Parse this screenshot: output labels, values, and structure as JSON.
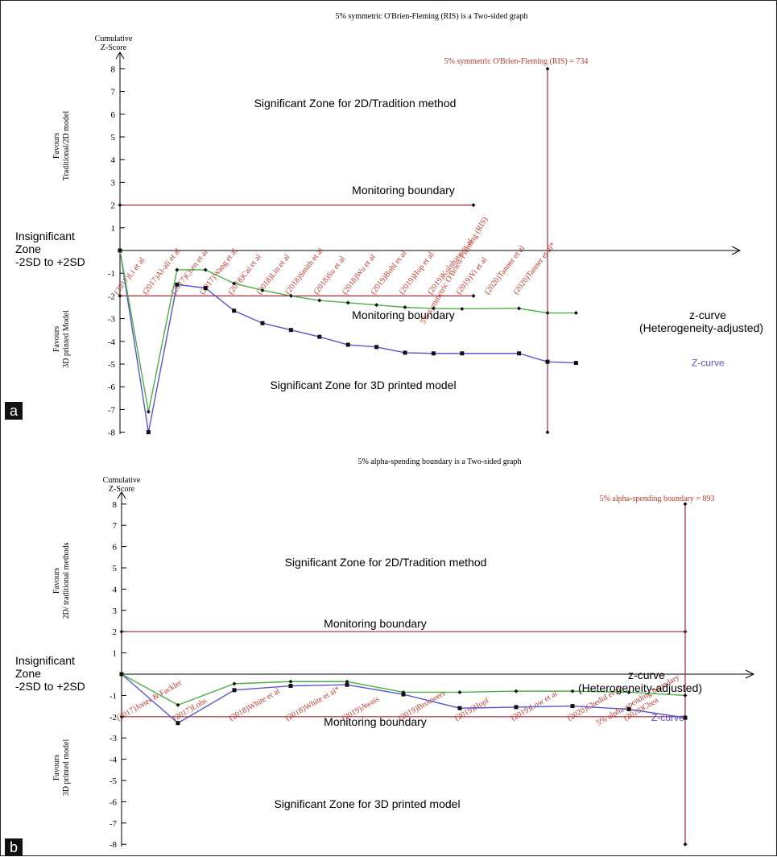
{
  "chart_data": [
    {
      "type": "line",
      "panel": "a",
      "title": "5% symmetric O'Brien-Fleming (RIS) is a Two-sided graph",
      "ylabel": "Cumulative Z-Score",
      "ylim": [
        -8,
        8
      ],
      "yticks": [
        8,
        7,
        6,
        5,
        4,
        3,
        2,
        1,
        -1,
        -2,
        -3,
        -4,
        -5,
        -6,
        -7,
        -8
      ],
      "favours_top": [
        "Favours",
        "Traditional/2D model"
      ],
      "favours_bottom": [
        "Favours",
        "3D printed Model"
      ],
      "insignificant_zone": [
        "Insignificant",
        "Zone",
        "-2SD to +2SD"
      ],
      "zone_top": "Significant Zone for 2D/Tradition method",
      "zone_bottom": "Significant Zone for 3D printed model",
      "monitoring_label": "Monitoring boundary",
      "ris_label": "5% symmetric O'Brien-Fleming (RIS) = 734",
      "ris_rotated": "5% symmetric O'Brien-Fleming (RIS)",
      "ris_position": 12.4,
      "x_end": 16,
      "categories": [
        "(2017)Li et al",
        "(2017)Al-ali et al",
        "(2017)Chen et al",
        "(2017)Wang et al",
        "(2018)Cai et al",
        "(2018)Lin et al",
        "(2018)Smith et al",
        "(2018)Su et al",
        "(2018)Wu et al",
        "(2019)Bohl et al",
        "(2019)Hop et al",
        "(2019)Kolnhaus et al",
        "(2019)Yi et al",
        "(2020)Tanner et al",
        "(2020)Tanner et al*"
      ],
      "category_x": [
        0,
        1,
        2,
        3,
        4,
        5,
        6,
        7,
        8,
        9,
        10,
        11,
        12,
        13,
        14,
        15
      ],
      "series": [
        {
          "name": "Z-curve",
          "label_lines": [
            "Z-curve"
          ],
          "color": "#5a55c8",
          "marker": "square",
          "x": [
            0,
            1,
            2,
            3,
            4,
            5,
            6,
            7,
            8,
            9,
            10,
            11,
            12,
            14,
            15,
            16
          ],
          "values": [
            0,
            -8.0,
            -1.5,
            -1.65,
            -2.65,
            -3.2,
            -3.5,
            -3.8,
            -4.15,
            -4.25,
            -4.5,
            -4.53,
            -4.53,
            -4.53,
            -4.9,
            -4.95
          ]
        },
        {
          "name": "z-curve (Heterogeneity-adjusted)",
          "label_lines": [
            "z-curve",
            "(Heterogeneity-adjusted)"
          ],
          "color": "#4fae47",
          "marker": "diamond",
          "x": [
            0,
            1,
            2,
            3,
            4,
            5,
            6,
            7,
            8,
            9,
            10,
            11,
            12,
            14,
            15,
            16
          ],
          "values": [
            0,
            -7.1,
            -0.85,
            -0.85,
            -1.45,
            -1.75,
            -2.0,
            -2.2,
            -2.3,
            -2.4,
            -2.5,
            -2.55,
            -2.57,
            -2.55,
            -2.75,
            -2.75
          ]
        }
      ]
    },
    {
      "type": "line",
      "panel": "b",
      "title": "5% alpha-spending boundary is a Two-sided graph",
      "ylabel": "Cumulative Z-Score",
      "ylim": [
        -8,
        8
      ],
      "yticks": [
        8,
        7,
        6,
        5,
        4,
        3,
        2,
        1,
        -1,
        -2,
        -3,
        -4,
        -5,
        -6,
        -7,
        -8
      ],
      "favours_top": [
        "Favours",
        "2D/ traditional methods"
      ],
      "favours_bottom": [
        "Favours",
        "3D printed model"
      ],
      "insignificant_zone": [
        "Insignificant",
        "Zone",
        "-2SD to +2SD"
      ],
      "zone_top": "Significant Zone for 2D/Tradition method",
      "zone_bottom": "Significant Zone for 3D printed model",
      "monitoring_label": "Monitoring boundary",
      "ris_label": "5% alpha-spending boundary = 893",
      "ris_rotated": "5% alpha-spending boundary",
      "ris_position": 10.0,
      "x_end": 10.6,
      "categories": [
        "(2017)Jones & Fackler",
        "(2017)Lohs",
        "(2018)White et al",
        "(2018)White et al*",
        "(2019)Awais",
        "(2019)Brouwers",
        "(2019)Hopf",
        "(2019)Low et al",
        "(2020)Chedid et al",
        "(2020)Chen"
      ],
      "category_x": [
        0,
        1,
        2,
        3,
        4,
        5,
        6,
        7,
        8,
        9,
        10
      ],
      "series": [
        {
          "name": "Z-curve",
          "label_lines": [
            "Z-curve"
          ],
          "color": "#5a55c8",
          "marker": "square",
          "x": [
            0,
            1,
            2,
            3,
            4,
            5,
            6,
            7,
            8,
            9,
            10
          ],
          "values": [
            0,
            -2.3,
            -0.75,
            -0.55,
            -0.5,
            -0.95,
            -1.6,
            -1.55,
            -1.5,
            -1.65,
            -2.05
          ]
        },
        {
          "name": "z-curve (Heterogeneity-adjusted)",
          "label_lines": [
            "z-curve",
            "(Heterogeneity-adjusted)"
          ],
          "color": "#4fae47",
          "marker": "diamond",
          "x": [
            0,
            1,
            2,
            3,
            4,
            5,
            6,
            7,
            8,
            9,
            10
          ],
          "values": [
            0,
            -1.45,
            -0.45,
            -0.35,
            -0.35,
            -0.85,
            -0.85,
            -0.8,
            -0.8,
            -0.85,
            -1.0
          ]
        }
      ]
    }
  ],
  "panel_labels": [
    "a",
    "b"
  ],
  "colors": {
    "boundary": "#a02a3c",
    "axis": "#000000",
    "ris_text": "#c0392b",
    "category_text": "#c0392b"
  }
}
